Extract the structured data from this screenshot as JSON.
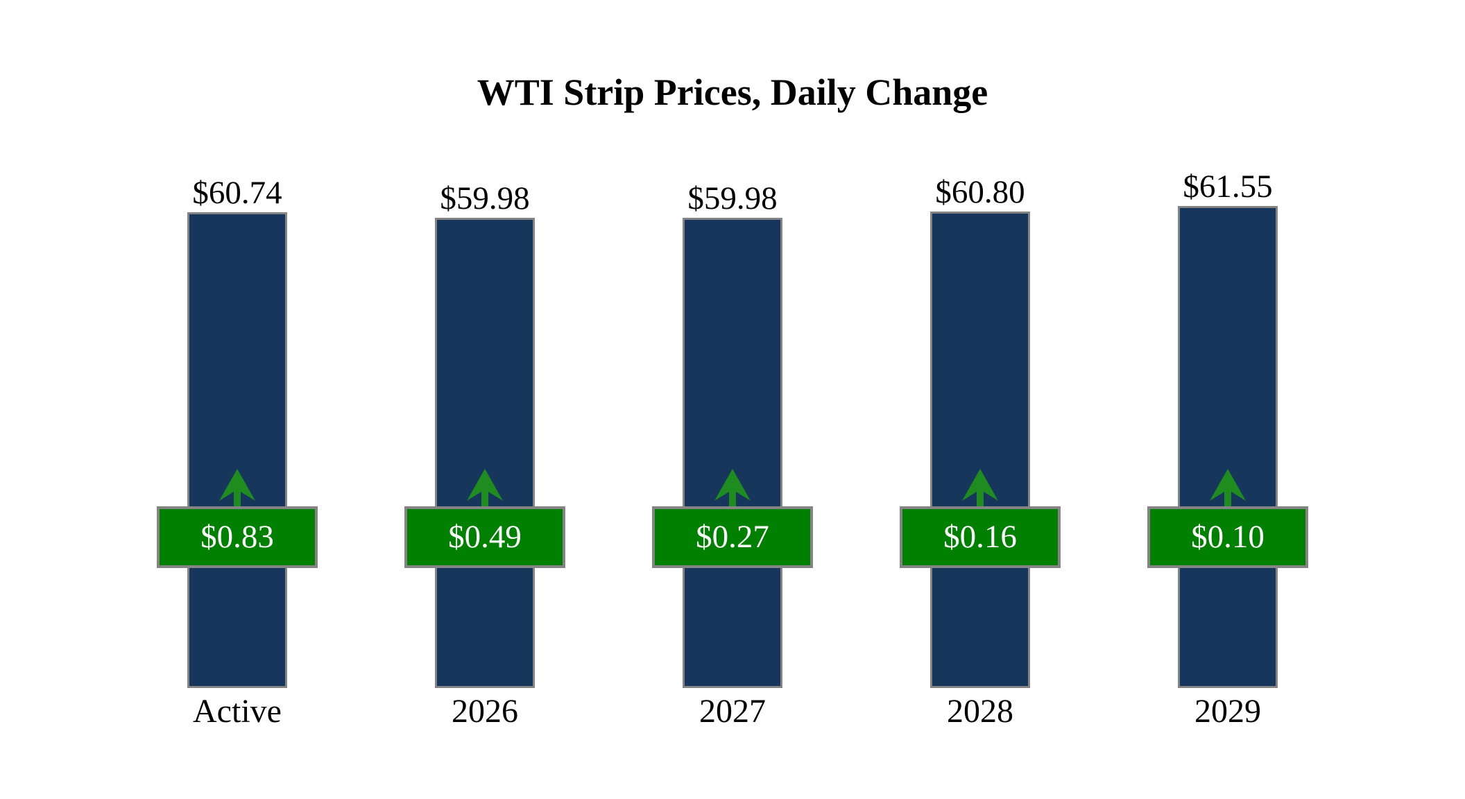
{
  "title": "WTI Strip Prices, Daily Change",
  "colors": {
    "background": "#ffffff",
    "text": "#000000",
    "bar": "#16365c",
    "badge": "#008000",
    "arrow": "#1e8c1e",
    "border": "#848484",
    "badgeText": "#ffffff"
  },
  "chart_data": {
    "type": "bar",
    "title": "WTI Strip Prices, Daily Change",
    "categories": [
      "Active",
      "2026",
      "2027",
      "2028",
      "2029"
    ],
    "series": [
      {
        "name": "Strip Price",
        "values": [
          60.74,
          59.98,
          59.98,
          60.8,
          61.55
        ]
      },
      {
        "name": "Daily Change",
        "values": [
          0.83,
          0.49,
          0.27,
          0.16,
          0.1
        ]
      }
    ],
    "bars": [
      {
        "category": "Active",
        "price": 60.74,
        "price_label": "$60.74",
        "change": 0.83,
        "change_label": "$0.83",
        "change_direction": "up"
      },
      {
        "category": "2026",
        "price": 59.98,
        "price_label": "$59.98",
        "change": 0.49,
        "change_label": "$0.49",
        "change_direction": "up"
      },
      {
        "category": "2027",
        "price": 59.98,
        "price_label": "$59.98",
        "change": 0.27,
        "change_label": "$0.27",
        "change_direction": "up"
      },
      {
        "category": "2028",
        "price": 60.8,
        "price_label": "$60.80",
        "change": 0.16,
        "change_label": "$0.16",
        "change_direction": "up"
      },
      {
        "category": "2029",
        "price": 61.55,
        "price_label": "$61.55",
        "change": 0.1,
        "change_label": "$0.10",
        "change_direction": "up"
      }
    ],
    "ylim": [
      0,
      64
    ],
    "grid": false,
    "axes_visible": false,
    "legend": "none",
    "value_labels_position": "above-bar",
    "change_badge_position": "fixed-height-overlay"
  }
}
